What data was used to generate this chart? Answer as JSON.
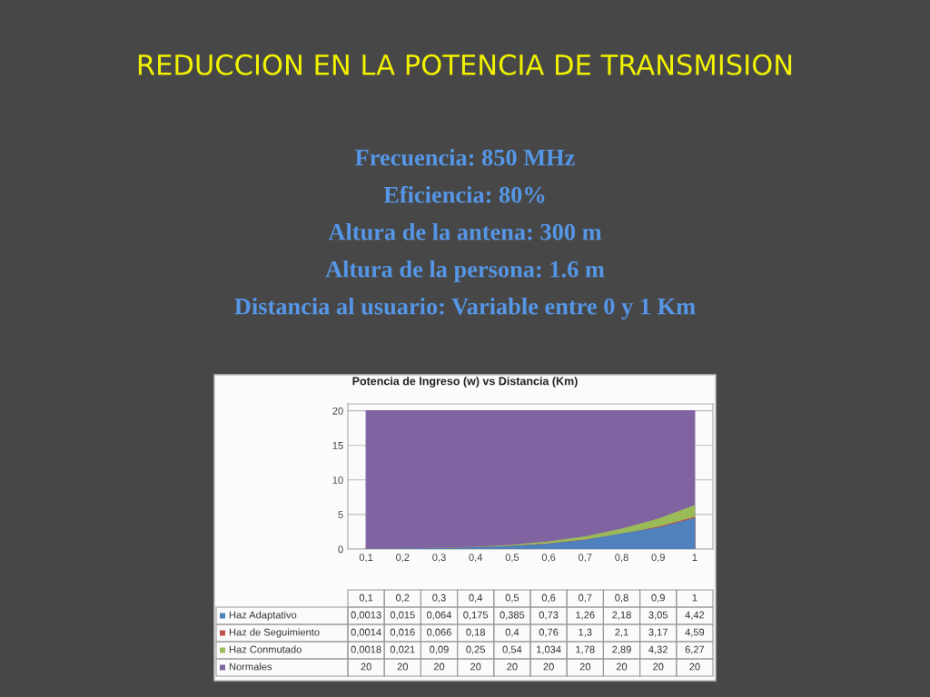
{
  "chart_data": {
    "type": "area",
    "title": "REDUCCION EN LA POTENCIA DE TRANSMISION",
    "subtitle": "Potencia de Ingreso (w) vs Distancia (Km)",
    "annotations": [
      "Frecuencia: 850 MHz",
      "Eficiencia: 80%",
      "Altura de la antena: 300 m",
      "Altura de la persona: 1.6 m",
      "Distancia al usuario: Variable entre 0 y 1 Km"
    ],
    "categories": [
      "0,1",
      "0,2",
      "0,3",
      "0,4",
      "0,5",
      "0,6",
      "0,7",
      "0,8",
      "0,9",
      "1"
    ],
    "series": [
      {
        "name": "Normales",
        "color": "#8064a2",
        "values": [
          20,
          20,
          20,
          20,
          20,
          20,
          20,
          20,
          20,
          20
        ],
        "value_labels": [
          "20",
          "20",
          "20",
          "20",
          "20",
          "20",
          "20",
          "20",
          "20",
          "20"
        ]
      },
      {
        "name": "Haz Conmutado",
        "color": "#9bbb59",
        "values": [
          0.0018,
          0.021,
          0.09,
          0.25,
          0.54,
          1.034,
          1.78,
          2.89,
          4.32,
          6.27
        ],
        "value_labels": [
          "0,0018",
          "0,021",
          "0,09",
          "0,25",
          "0,54",
          "1,034",
          "1,78",
          "2,89",
          "4,32",
          "6,27"
        ]
      },
      {
        "name": "Haz de Seguimiento",
        "color": "#c0504d",
        "values": [
          0.0014,
          0.016,
          0.066,
          0.18,
          0.4,
          0.76,
          1.3,
          2.1,
          3.17,
          4.59
        ],
        "value_labels": [
          "0,0014",
          "0,016",
          "0,066",
          "0,18",
          "0,4",
          "0,76",
          "1,3",
          "2,1",
          "3,17",
          "4,59"
        ]
      },
      {
        "name": "Haz Adaptativo",
        "color": "#4f81bd",
        "values": [
          0.0013,
          0.015,
          0.064,
          0.175,
          0.385,
          0.73,
          1.26,
          2.18,
          3.05,
          4.42
        ],
        "value_labels": [
          "0,0013",
          "0,015",
          "0,064",
          "0,175",
          "0,385",
          "0,73",
          "1,26",
          "2,18",
          "3,05",
          "4,42"
        ]
      }
    ],
    "ylim": [
      0,
      21
    ],
    "yticks": [
      0,
      5,
      10,
      15,
      20
    ],
    "grid": "y",
    "legend": "bottom"
  }
}
